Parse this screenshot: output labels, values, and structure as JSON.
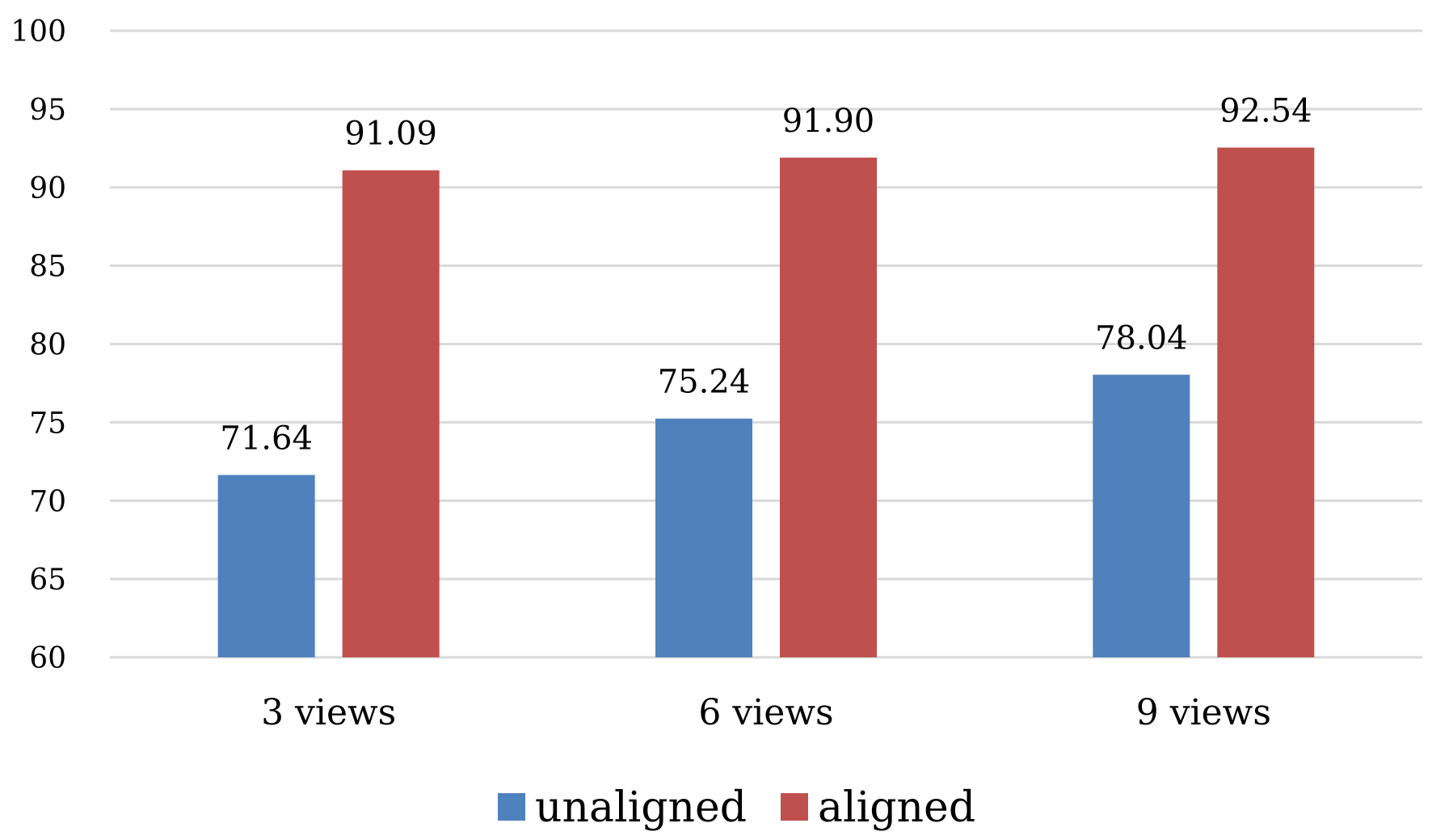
{
  "chart_data": {
    "type": "bar",
    "title": "",
    "xlabel": "",
    "ylabel": "",
    "categories": [
      "3 views",
      "6 views",
      "9 views"
    ],
    "series": [
      {
        "name": "unaligned",
        "color": "#4f81bd",
        "values": [
          71.64,
          75.24,
          78.04
        ],
        "labels": [
          "71.64",
          "75.24",
          "78.04"
        ]
      },
      {
        "name": "aligned",
        "color": "#c0504d",
        "values": [
          91.09,
          91.9,
          92.54
        ],
        "labels": [
          "91.09",
          "91.90",
          "92.54"
        ]
      }
    ],
    "ylim": [
      60,
      100
    ],
    "yticks": [
      "60",
      "65",
      "70",
      "75",
      "80",
      "85",
      "90",
      "95",
      "100"
    ],
    "grid": true,
    "legend_position": "bottom-center",
    "gridline_color": "#d9d9d9"
  }
}
